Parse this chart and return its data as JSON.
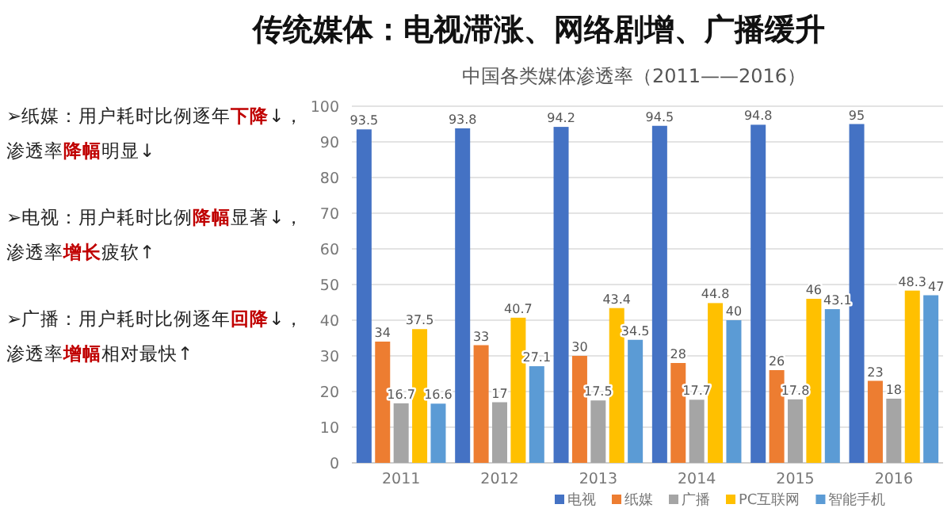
{
  "chart_data": {
    "type": "bar",
    "title": "传统媒体：电视滞涨、网络剧增、广播缓升",
    "subtitle": "中国各类媒体渗透率（2011——2016）",
    "categories": [
      "2011",
      "2012",
      "2013",
      "2014",
      "2015",
      "2016"
    ],
    "series": [
      {
        "name": "电视",
        "color": "#4472c4",
        "values": [
          93.5,
          93.8,
          94.2,
          94.5,
          94.8,
          95
        ]
      },
      {
        "name": "纸媒",
        "color": "#ed7d31",
        "values": [
          34,
          33,
          30,
          28,
          26,
          23
        ]
      },
      {
        "name": "广播",
        "color": "#a5a5a5",
        "values": [
          16.7,
          17,
          17.5,
          17.7,
          17.8,
          18
        ]
      },
      {
        "name": "PC互联网",
        "color": "#ffc000",
        "values": [
          37.5,
          40.7,
          43.4,
          44.8,
          46,
          48.3
        ]
      },
      {
        "name": "智能手机",
        "color": "#5b9bd5",
        "values": [
          16.6,
          27.1,
          34.5,
          40,
          43.1,
          47
        ]
      }
    ],
    "ylim": [
      0,
      100
    ],
    "yticks": [
      0,
      10,
      20,
      30,
      40,
      50,
      60,
      70,
      80,
      90,
      100
    ],
    "grid": "y",
    "legend": "bottom",
    "data_labels": true,
    "annotations": [
      "➢纸媒：用户耗时比例逐年**下降**↓，渗透率**降幅**明显↓",
      "➢电视：用户耗时比例**降幅**显著↓，渗透率**增长**疲软↑",
      "➢广播：用户耗时比例逐年**回降**↓，渗透率**增幅**相对最快↑"
    ]
  }
}
